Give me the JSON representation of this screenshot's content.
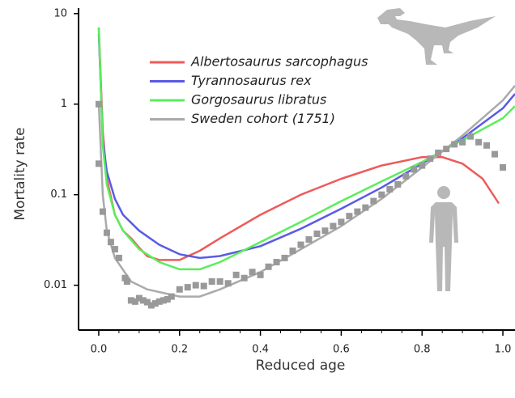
{
  "chart_data": {
    "type": "line",
    "x_label": "Reduced age",
    "y_label": "Mortality rate",
    "log_y": true,
    "xlim": [
      -0.05,
      1.03
    ],
    "ylim": [
      0.0032,
      11.5
    ],
    "xticks": [
      {
        "value": 0,
        "label": "0.0"
      },
      {
        "value": 0.2,
        "label": "0.2"
      },
      {
        "value": 0.4,
        "label": "0.4"
      },
      {
        "value": 0.6,
        "label": "0.6"
      },
      {
        "value": 0.8,
        "label": "0.8"
      },
      {
        "value": 1,
        "label": "1.0"
      }
    ],
    "x_minor_ticks": [
      0.05,
      0.1,
      0.15,
      0.25,
      0.3,
      0.35,
      0.45,
      0.5,
      0.55,
      0.65,
      0.7,
      0.75,
      0.85,
      0.9,
      0.95
    ],
    "yticks": [
      10,
      1,
      0.1,
      0.01
    ],
    "series": [
      {
        "name": "Albertosaurus sarcophagus",
        "color": "#ee5a5a",
        "style": "line",
        "x": [
          0,
          0.01,
          0.02,
          0.04,
          0.06,
          0.08,
          0.1,
          0.12,
          0.15,
          0.2,
          0.25,
          0.3,
          0.4,
          0.5,
          0.6,
          0.7,
          0.8,
          0.85,
          0.9,
          0.95,
          0.99
        ],
        "values": [
          7,
          0.5,
          0.15,
          0.06,
          0.04,
          0.033,
          0.026,
          0.021,
          0.019,
          0.019,
          0.024,
          0.033,
          0.06,
          0.1,
          0.15,
          0.21,
          0.26,
          0.26,
          0.22,
          0.15,
          0.08
        ]
      },
      {
        "name": "Tyrannosaurus rex",
        "color": "#5a5ae6",
        "style": "line",
        "x": [
          0,
          0.01,
          0.02,
          0.04,
          0.06,
          0.1,
          0.15,
          0.2,
          0.25,
          0.3,
          0.4,
          0.5,
          0.6,
          0.7,
          0.8,
          0.9,
          1,
          1.03
        ],
        "values": [
          6,
          0.4,
          0.18,
          0.09,
          0.06,
          0.04,
          0.028,
          0.022,
          0.02,
          0.021,
          0.027,
          0.042,
          0.07,
          0.12,
          0.22,
          0.42,
          0.9,
          1.3
        ]
      },
      {
        "name": "Gorgosaurus libratus",
        "color": "#5aee5a",
        "style": "line",
        "x": [
          0,
          0.01,
          0.02,
          0.04,
          0.06,
          0.1,
          0.15,
          0.2,
          0.25,
          0.3,
          0.4,
          0.5,
          0.6,
          0.7,
          0.8,
          0.9,
          1,
          1.03
        ],
        "values": [
          7,
          0.35,
          0.13,
          0.06,
          0.04,
          0.025,
          0.018,
          0.015,
          0.015,
          0.018,
          0.03,
          0.05,
          0.085,
          0.14,
          0.23,
          0.4,
          0.7,
          0.95
        ]
      },
      {
        "name": "Sweden cohort (1751)",
        "color": "#aaaaaa",
        "style": "line",
        "x": [
          0,
          0.01,
          0.02,
          0.04,
          0.08,
          0.12,
          0.2,
          0.25,
          0.3,
          0.4,
          0.5,
          0.6,
          0.7,
          0.8,
          0.9,
          1,
          1.03
        ],
        "values": [
          1,
          0.1,
          0.04,
          0.02,
          0.011,
          0.009,
          0.0075,
          0.0075,
          0.009,
          0.014,
          0.025,
          0.045,
          0.09,
          0.2,
          0.45,
          1.1,
          1.6
        ]
      },
      {
        "color": "#999999",
        "style": "markers",
        "x": [
          0,
          0,
          0.01,
          0.02,
          0.03,
          0.04,
          0.05,
          0.065,
          0.07,
          0.08,
          0.09,
          0.1,
          0.11,
          0.12,
          0.13,
          0.14,
          0.15,
          0.16,
          0.17,
          0.18,
          0.2,
          0.22,
          0.24,
          0.26,
          0.28,
          0.3,
          0.32,
          0.34,
          0.36,
          0.38,
          0.4,
          0.42,
          0.44,
          0.46,
          0.48,
          0.5,
          0.52,
          0.54,
          0.56,
          0.58,
          0.6,
          0.62,
          0.64,
          0.66,
          0.68,
          0.7,
          0.72,
          0.74,
          0.76,
          0.78,
          0.8,
          0.82,
          0.84,
          0.86,
          0.88,
          0.9,
          0.92,
          0.94,
          0.96,
          0.98,
          1
        ],
        "values": [
          1,
          0.22,
          0.065,
          0.038,
          0.03,
          0.025,
          0.02,
          0.012,
          0.011,
          0.0068,
          0.0066,
          0.0072,
          0.0068,
          0.0065,
          0.006,
          0.0063,
          0.0066,
          0.0068,
          0.007,
          0.0075,
          0.009,
          0.0095,
          0.01,
          0.0098,
          0.011,
          0.011,
          0.0105,
          0.013,
          0.012,
          0.014,
          0.013,
          0.016,
          0.018,
          0.02,
          0.024,
          0.028,
          0.032,
          0.037,
          0.04,
          0.045,
          0.05,
          0.058,
          0.065,
          0.072,
          0.085,
          0.1,
          0.115,
          0.13,
          0.16,
          0.19,
          0.21,
          0.25,
          0.29,
          0.32,
          0.36,
          0.38,
          0.44,
          0.38,
          0.35,
          0.28,
          0.2
        ]
      }
    ]
  }
}
